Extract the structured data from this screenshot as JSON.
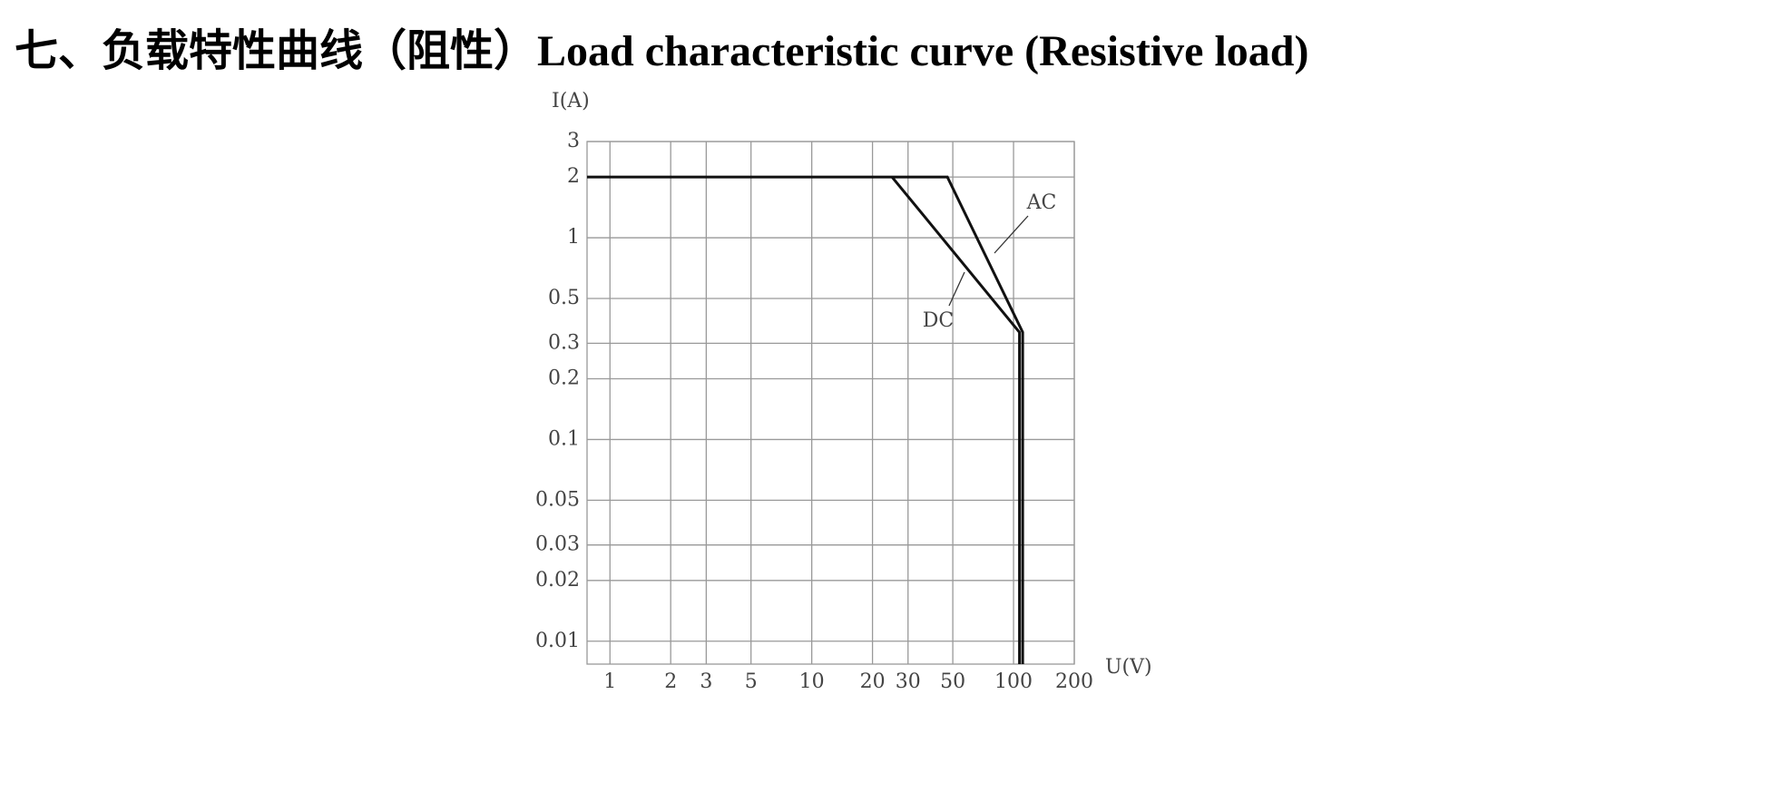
{
  "chart_data": {
    "type": "line",
    "title": "七、负载特性曲线（阻性）Load characteristic curve (Resistive load)",
    "y_label": "I(A)",
    "x_label": "U(V)",
    "log_x": true,
    "log_y": true,
    "grid": true,
    "xlim": [
      0.77,
      200
    ],
    "ylim": [
      0.0077,
      3
    ],
    "xticks": [
      1,
      2,
      3,
      5,
      10,
      20,
      30,
      50,
      100,
      200
    ],
    "yticks": [
      0.01,
      0.02,
      0.03,
      0.05,
      0.1,
      0.2,
      0.3,
      0.5,
      1,
      2,
      3
    ],
    "series": [
      {
        "name": "AC",
        "color": "#111111",
        "x": [
          0.77,
          47,
          111,
          111
        ],
        "values": [
          2,
          2,
          0.34,
          0.0077
        ]
      },
      {
        "name": "DC",
        "color": "#111111",
        "x": [
          25,
          107,
          107
        ],
        "values": [
          2,
          0.34,
          0.0077
        ]
      }
    ]
  }
}
